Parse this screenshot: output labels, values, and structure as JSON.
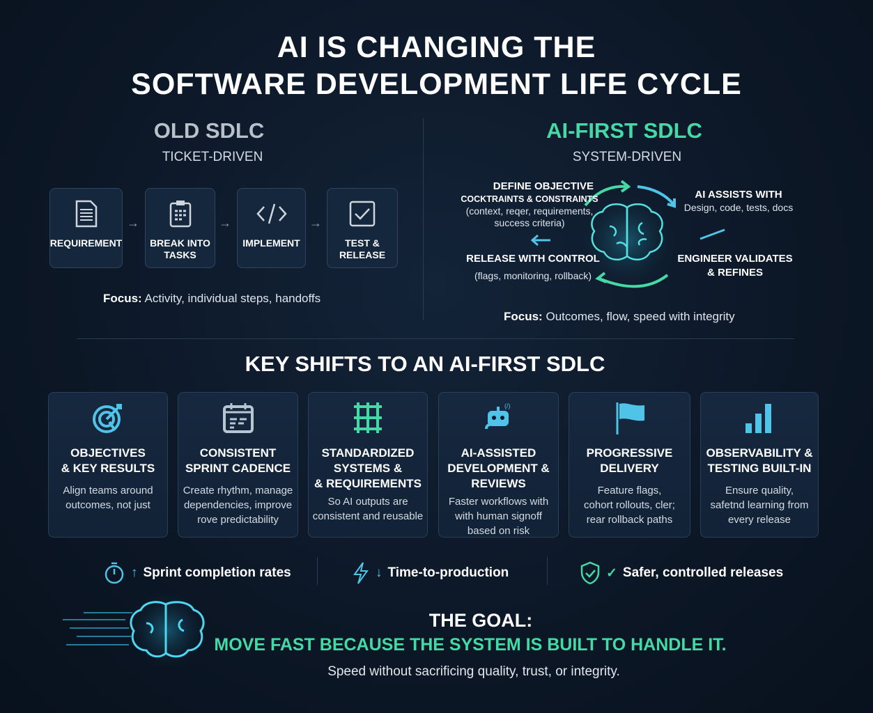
{
  "title": {
    "line1": "AI IS CHANGING THE",
    "line2": "SOFTWARE DEVELOPMENT LIFE CYCLE"
  },
  "old": {
    "heading": "OLD SDLC",
    "subtitle": "TICKET-DRIVEN",
    "steps": [
      {
        "label": "REQUIREMENT",
        "icon": "document-icon"
      },
      {
        "label": "BREAK INTO TASKS",
        "icon": "clipboard-icon"
      },
      {
        "label": "IMPLEMENT",
        "icon": "code-icon"
      },
      {
        "label": "TEST & RELEASE",
        "icon": "checkbox-icon"
      }
    ],
    "focus_label": "Focus:",
    "focus_text": "Activity, individual steps, handoffs"
  },
  "new": {
    "heading": "AI-FIRST SDLC",
    "subtitle": "SYSTEM-DRIVEN",
    "cycle": {
      "define_title": "DEFINE OBJECTIVE",
      "define_sub": "COCKTRAINTS & CONSTRAINTS",
      "define_desc1": "(context, reqer, requirements,",
      "define_desc2": "success criteria)",
      "ai_title": "AI ASSISTS WITH",
      "ai_desc": "Design, code, tests, docs",
      "engineer_title1": "ENGINEER VALIDATES",
      "engineer_title2": "& REFINES",
      "release_title": "RELEASE WITH CONTROL",
      "release_desc": "(flags, monitoring, rollback)"
    },
    "focus_label": "Focus:",
    "focus_text": "Outcomes, flow, speed with integrity"
  },
  "shifts": {
    "heading": "KEY SHIFTS TO AN AI-FIRST SDLC",
    "cards": [
      {
        "title": "OBJECTIVES\n& KEY RESULTS",
        "desc": "Align teams around\noutcomes, not just",
        "icon": "target-icon"
      },
      {
        "title": "CONSISTENT\nSPRINT CADENCE",
        "desc": "Create rhythm, manage\ndependencies, improve\nrove predictability",
        "icon": "calendar-icon"
      },
      {
        "title": "STANDARDIZED\nSYSTEMS &\n& REQUIREMENTS",
        "desc": "So AI outputs are\nconsistent and reusable",
        "icon": "grid-icon"
      },
      {
        "title": "AI-ASSISTED\nDEVELOPMENT &\nREVIEWS",
        "desc": "Faster workflows with\nwith human signoff\nbased on risk",
        "icon": "robot-icon"
      },
      {
        "title": "PROGRESSIVE\nDELIVERY",
        "desc": "Feature flags,\ncohort rollouts, cler;\nrear rollback paths",
        "icon": "flag-icon"
      },
      {
        "title": "OBSERVABILITY &\nTESTING BUILT-IN",
        "desc": "Ensure quality,\nsafetnd learning from\nevery release",
        "icon": "bar-chart-icon"
      }
    ]
  },
  "stats": [
    {
      "icon": "stopwatch-icon",
      "arrow": "↑",
      "text": "Sprint completion rates"
    },
    {
      "icon": "lightning-icon",
      "arrow": "↓",
      "text": "Time-to-production"
    },
    {
      "icon": "shield-check-icon",
      "arrow": "✓",
      "text": "Safer, controlled releases"
    }
  ],
  "goal": {
    "heading": "THE GOAL:",
    "tagline": "MOVE FAST BECAUSE THE SYSTEM IS BUILT TO HANDLE IT.",
    "sub": "Speed without sacrificing quality, trust, or integrity."
  },
  "colors": {
    "accent_green": "#45d9a6",
    "accent_cyan": "#4fc3e8",
    "background": "#0c1726",
    "old_heading": "#b8c0ca"
  }
}
